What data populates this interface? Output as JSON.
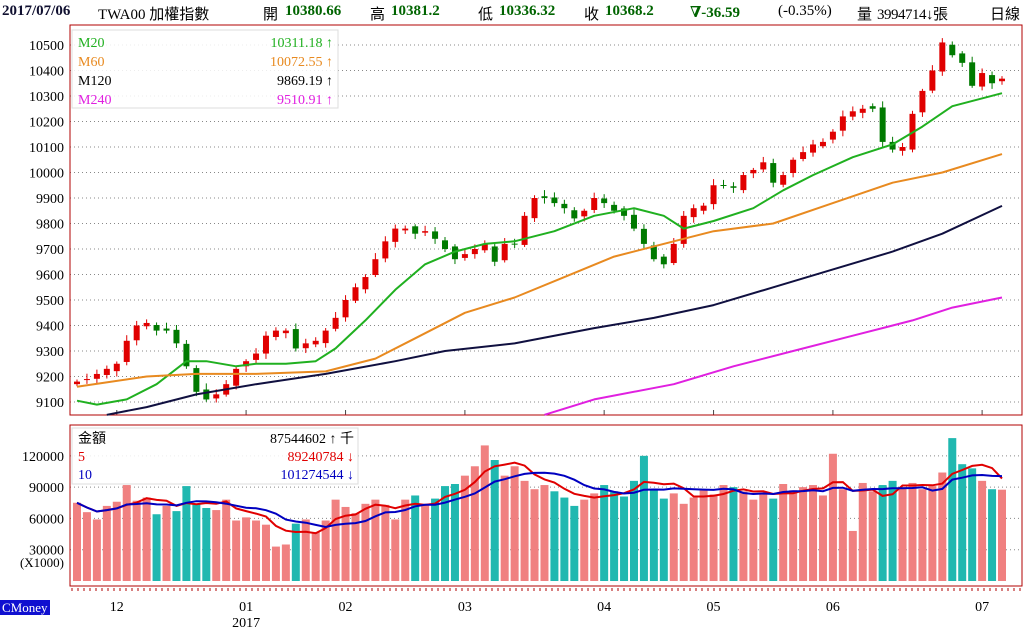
{
  "header": {
    "date": "2017/07/06",
    "symbol": "TWA00 加權指數",
    "open_label": "開",
    "open": "10380.66",
    "high_label": "高",
    "high": "10381.2",
    "low_label": "低",
    "low": "10336.32",
    "close_label": "收",
    "close": "10368.2",
    "change": "∇-36.59",
    "change_pct": "(-0.35%)",
    "volume_label": "量",
    "volume": "3994714↓張",
    "period": "日線"
  },
  "price_legend": [
    {
      "name": "M20",
      "value": "10311.18 ↑",
      "color": "#20b020"
    },
    {
      "name": "M60",
      "value": "10072.55 ↑",
      "color": "#e88a20"
    },
    {
      "name": "M120",
      "value": "9869.19 ↑",
      "color": "#000000"
    },
    {
      "name": "M240",
      "value": "9510.91 ↑",
      "color": "#e020e0"
    }
  ],
  "volume_legend": [
    {
      "name": "金額",
      "value": "87544602 ↑ 千",
      "color": "#000000"
    },
    {
      "name": "5",
      "value": "89240784 ↓",
      "color": "#e00000"
    },
    {
      "name": "10",
      "value": "101274544 ↓",
      "color": "#0000c0"
    }
  ],
  "brand": "CMoney",
  "chart_data": [
    {
      "type": "candlestick",
      "title": "TWA00 加權指數 日線",
      "ylim": [
        9050,
        10560
      ],
      "yticks": [
        "10500",
        "10400",
        "10300",
        "10200",
        "10100",
        "10000",
        "9900",
        "9800",
        "9700",
        "9600",
        "9500",
        "9400",
        "9300",
        "9200",
        "9100"
      ],
      "xticks": [
        {
          "label": "12",
          "index": 4
        },
        {
          "label": "01",
          "index": 17
        },
        {
          "label": "02",
          "index": 27
        },
        {
          "label": "03",
          "index": 39
        },
        {
          "label": "04",
          "index": 53
        },
        {
          "label": "05",
          "index": 64
        },
        {
          "label": "06",
          "index": 76
        },
        {
          "label": "07",
          "index": 91
        }
      ],
      "year_label": "2017",
      "close": [
        9180,
        9190,
        9210,
        9230,
        9250,
        9340,
        9400,
        9410,
        9380,
        9380,
        9330,
        9240,
        9140,
        9110,
        9130,
        9170,
        9230,
        9260,
        9290,
        9360,
        9380,
        9380,
        9310,
        9330,
        9340,
        9380,
        9430,
        9500,
        9550,
        9590,
        9660,
        9730,
        9780,
        9780,
        9760,
        9770,
        9740,
        9700,
        9660,
        9680,
        9700,
        9720,
        9650,
        9720,
        9720,
        9830,
        9900,
        9900,
        9880,
        9860,
        9820,
        9850,
        9900,
        9880,
        9850,
        9830,
        9780,
        9720,
        9660,
        9640,
        9720,
        9830,
        9860,
        9870,
        9950,
        9950,
        9940,
        9990,
        10010,
        10040,
        9960,
        9990,
        10050,
        10080,
        10110,
        10120,
        10160,
        10220,
        10240,
        10250,
        10250,
        10120,
        10090,
        10100,
        10230,
        10320,
        10400,
        10510,
        10460,
        10430,
        10340,
        10390,
        10350,
        10368
      ],
      "ma": {
        "M20": [
          [
            0,
            9105
          ],
          [
            2,
            9090
          ],
          [
            5,
            9110
          ],
          [
            8,
            9170
          ],
          [
            11,
            9260
          ],
          [
            13,
            9260
          ],
          [
            16,
            9240
          ],
          [
            18,
            9250
          ],
          [
            21,
            9250
          ],
          [
            24,
            9260
          ],
          [
            26,
            9310
          ],
          [
            29,
            9420
          ],
          [
            32,
            9540
          ],
          [
            35,
            9640
          ],
          [
            38,
            9690
          ],
          [
            41,
            9720
          ],
          [
            44,
            9730
          ],
          [
            48,
            9770
          ],
          [
            52,
            9830
          ],
          [
            56,
            9860
          ],
          [
            59,
            9830
          ],
          [
            61,
            9780
          ],
          [
            64,
            9810
          ],
          [
            68,
            9860
          ],
          [
            71,
            9930
          ],
          [
            74,
            9990
          ],
          [
            78,
            10060
          ],
          [
            82,
            10110
          ],
          [
            85,
            10180
          ],
          [
            88,
            10260
          ],
          [
            93,
            10311
          ]
        ],
        "M60": [
          [
            0,
            9160
          ],
          [
            7,
            9200
          ],
          [
            12,
            9210
          ],
          [
            18,
            9210
          ],
          [
            25,
            9220
          ],
          [
            30,
            9270
          ],
          [
            34,
            9350
          ],
          [
            39,
            9450
          ],
          [
            44,
            9510
          ],
          [
            49,
            9590
          ],
          [
            54,
            9670
          ],
          [
            60,
            9730
          ],
          [
            64,
            9770
          ],
          [
            70,
            9800
          ],
          [
            76,
            9880
          ],
          [
            82,
            9960
          ],
          [
            87,
            10000
          ],
          [
            93,
            10072
          ]
        ],
        "M120": [
          [
            3,
            9050
          ],
          [
            7,
            9080
          ],
          [
            12,
            9130
          ],
          [
            18,
            9170
          ],
          [
            25,
            9210
          ],
          [
            32,
            9260
          ],
          [
            37,
            9300
          ],
          [
            44,
            9330
          ],
          [
            52,
            9390
          ],
          [
            58,
            9430
          ],
          [
            64,
            9480
          ],
          [
            70,
            9550
          ],
          [
            76,
            9620
          ],
          [
            82,
            9690
          ],
          [
            87,
            9760
          ],
          [
            93,
            9869
          ]
        ],
        "M240": [
          [
            47,
            9050
          ],
          [
            52,
            9110
          ],
          [
            60,
            9170
          ],
          [
            66,
            9240
          ],
          [
            72,
            9300
          ],
          [
            78,
            9360
          ],
          [
            84,
            9420
          ],
          [
            88,
            9470
          ],
          [
            93,
            9510
          ]
        ]
      }
    },
    {
      "type": "bar",
      "title": "金額",
      "unit": "(X1000)",
      "ylim": [
        0,
        140000
      ],
      "yticks": [
        "120000",
        "90000",
        "60000",
        "30000"
      ],
      "values": [
        75000,
        66000,
        59000,
        72000,
        76000,
        92000,
        77000,
        80000,
        64000,
        72000,
        67000,
        91000,
        74000,
        70000,
        68000,
        78000,
        58000,
        61000,
        58000,
        54000,
        33000,
        35000,
        55000,
        59000,
        47000,
        58000,
        78000,
        71000,
        65000,
        74000,
        78000,
        73000,
        59000,
        78000,
        82000,
        73000,
        79000,
        91000,
        93000,
        101000,
        110000,
        130000,
        116000,
        101000,
        110000,
        96000,
        88000,
        92000,
        86000,
        80000,
        72000,
        78000,
        84000,
        92000,
        86000,
        81000,
        96000,
        120000,
        88000,
        79000,
        84000,
        74000,
        80000,
        88000,
        83000,
        92000,
        90000,
        86000,
        78000,
        84000,
        79000,
        93000,
        87000,
        90000,
        92000,
        82000,
        122000,
        88000,
        48000,
        94000,
        86000,
        92000,
        96000,
        90000,
        94000,
        88000,
        91000,
        104000,
        137000,
        112000,
        108000,
        96000,
        88000,
        87544
      ],
      "ma5_label": "5",
      "ma10_label": "10"
    }
  ]
}
